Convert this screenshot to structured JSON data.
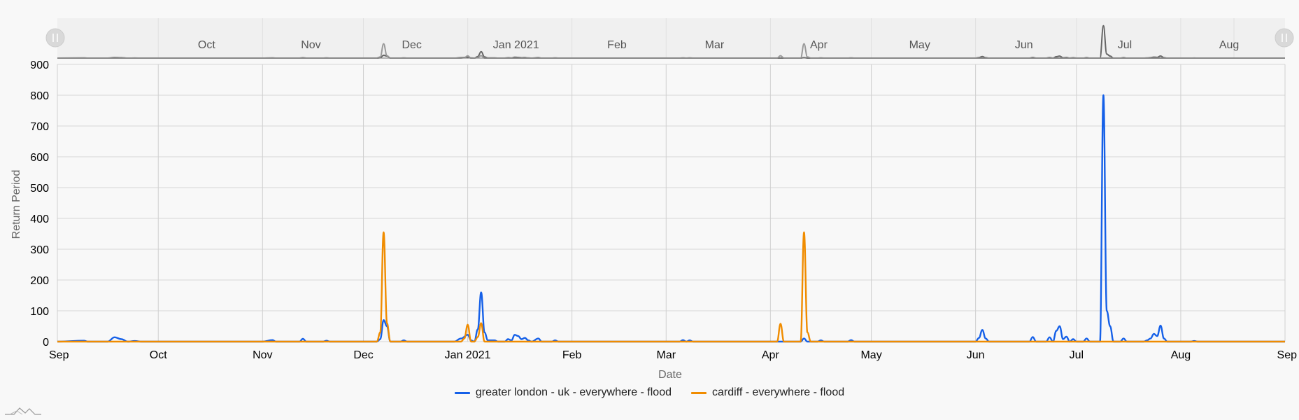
{
  "chart_data": {
    "type": "line",
    "xlabel": "Date",
    "ylabel": "Return Period",
    "ylim": [
      0,
      900
    ],
    "yticks": [
      0,
      100,
      200,
      300,
      400,
      500,
      600,
      700,
      800,
      900
    ],
    "xlim": [
      "2020-09-01",
      "2021-09-01"
    ],
    "xticks": [
      {
        "date": "2020-09-01",
        "label": "Sep"
      },
      {
        "date": "2020-10-01",
        "label": "Oct"
      },
      {
        "date": "2020-11-01",
        "label": "Nov"
      },
      {
        "date": "2020-12-01",
        "label": "Dec"
      },
      {
        "date": "2021-01-01",
        "label": "Jan 2021"
      },
      {
        "date": "2021-02-01",
        "label": "Feb"
      },
      {
        "date": "2021-03-01",
        "label": "Mar"
      },
      {
        "date": "2021-04-01",
        "label": "Apr"
      },
      {
        "date": "2021-05-01",
        "label": "May"
      },
      {
        "date": "2021-06-01",
        "label": "Jun"
      },
      {
        "date": "2021-07-01",
        "label": "Jul"
      },
      {
        "date": "2021-08-01",
        "label": "Aug"
      },
      {
        "date": "2021-09-01",
        "label": "Sep"
      }
    ],
    "navigator_labels": [
      "Oct",
      "Nov",
      "Dec",
      "Jan 2021",
      "Feb",
      "Mar",
      "Apr",
      "May",
      "Jun",
      "Jul",
      "Aug"
    ],
    "grid": true,
    "legend_position": "bottom-center",
    "series": [
      {
        "name": "greater london - uk - everywhere - flood",
        "color": "#1560e8",
        "points": [
          [
            "2020-09-01",
            0
          ],
          [
            "2020-09-09",
            3
          ],
          [
            "2020-09-10",
            0
          ],
          [
            "2020-09-16",
            0
          ],
          [
            "2020-09-18",
            14
          ],
          [
            "2020-09-20",
            8
          ],
          [
            "2020-09-22",
            0
          ],
          [
            "2020-09-24",
            2
          ],
          [
            "2020-09-26",
            0
          ],
          [
            "2020-10-10",
            0
          ],
          [
            "2020-11-01",
            0
          ],
          [
            "2020-11-04",
            5
          ],
          [
            "2020-11-05",
            0
          ],
          [
            "2020-11-12",
            0
          ],
          [
            "2020-11-13",
            9
          ],
          [
            "2020-11-14",
            0
          ],
          [
            "2020-11-19",
            0
          ],
          [
            "2020-11-20",
            3
          ],
          [
            "2020-11-21",
            0
          ],
          [
            "2020-12-05",
            0
          ],
          [
            "2020-12-06",
            8
          ],
          [
            "2020-12-07",
            70
          ],
          [
            "2020-12-08",
            50
          ],
          [
            "2020-12-09",
            0
          ],
          [
            "2020-12-12",
            0
          ],
          [
            "2020-12-13",
            4
          ],
          [
            "2020-12-14",
            0
          ],
          [
            "2020-12-28",
            0
          ],
          [
            "2020-12-30",
            10
          ],
          [
            "2021-01-01",
            22
          ],
          [
            "2021-01-02",
            4
          ],
          [
            "2021-01-03",
            0
          ],
          [
            "2021-01-04",
            40
          ],
          [
            "2021-01-05",
            160
          ],
          [
            "2021-01-06",
            30
          ],
          [
            "2021-01-07",
            4
          ],
          [
            "2021-01-09",
            4
          ],
          [
            "2021-01-10",
            0
          ],
          [
            "2021-01-12",
            0
          ],
          [
            "2021-01-13",
            8
          ],
          [
            "2021-01-14",
            4
          ],
          [
            "2021-01-15",
            22
          ],
          [
            "2021-01-16",
            18
          ],
          [
            "2021-01-17",
            8
          ],
          [
            "2021-01-18",
            12
          ],
          [
            "2021-01-19",
            4
          ],
          [
            "2021-01-20",
            0
          ],
          [
            "2021-01-22",
            10
          ],
          [
            "2021-01-23",
            0
          ],
          [
            "2021-01-26",
            0
          ],
          [
            "2021-01-27",
            4
          ],
          [
            "2021-01-28",
            0
          ],
          [
            "2021-03-05",
            0
          ],
          [
            "2021-03-06",
            5
          ],
          [
            "2021-03-07",
            0
          ],
          [
            "2021-03-08",
            4
          ],
          [
            "2021-03-09",
            0
          ],
          [
            "2021-04-10",
            0
          ],
          [
            "2021-04-11",
            10
          ],
          [
            "2021-04-12",
            0
          ],
          [
            "2021-04-15",
            0
          ],
          [
            "2021-04-16",
            4
          ],
          [
            "2021-04-17",
            0
          ],
          [
            "2021-04-24",
            0
          ],
          [
            "2021-04-25",
            5
          ],
          [
            "2021-04-26",
            0
          ],
          [
            "2021-06-01",
            0
          ],
          [
            "2021-06-02",
            12
          ],
          [
            "2021-06-03",
            38
          ],
          [
            "2021-06-04",
            10
          ],
          [
            "2021-06-05",
            0
          ],
          [
            "2021-06-17",
            0
          ],
          [
            "2021-06-18",
            15
          ],
          [
            "2021-06-19",
            0
          ],
          [
            "2021-06-22",
            0
          ],
          [
            "2021-06-23",
            14
          ],
          [
            "2021-06-24",
            0
          ],
          [
            "2021-06-25",
            35
          ],
          [
            "2021-06-26",
            50
          ],
          [
            "2021-06-27",
            8
          ],
          [
            "2021-06-28",
            16
          ],
          [
            "2021-06-29",
            0
          ],
          [
            "2021-06-30",
            8
          ],
          [
            "2021-07-01",
            0
          ],
          [
            "2021-07-03",
            0
          ],
          [
            "2021-07-04",
            10
          ],
          [
            "2021-07-05",
            0
          ],
          [
            "2021-07-08",
            0
          ],
          [
            "2021-07-09",
            800
          ],
          [
            "2021-07-10",
            100
          ],
          [
            "2021-07-11",
            50
          ],
          [
            "2021-07-12",
            0
          ],
          [
            "2021-07-14",
            0
          ],
          [
            "2021-07-15",
            10
          ],
          [
            "2021-07-16",
            0
          ],
          [
            "2021-07-21",
            0
          ],
          [
            "2021-07-22",
            4
          ],
          [
            "2021-07-23",
            10
          ],
          [
            "2021-07-24",
            25
          ],
          [
            "2021-07-25",
            18
          ],
          [
            "2021-07-26",
            52
          ],
          [
            "2021-07-27",
            10
          ],
          [
            "2021-07-28",
            0
          ],
          [
            "2021-08-04",
            0
          ],
          [
            "2021-08-05",
            2
          ],
          [
            "2021-08-06",
            0
          ],
          [
            "2021-09-01",
            0
          ]
        ]
      },
      {
        "name": "cardiff - everywhere - flood",
        "color": "#f08c00",
        "points": [
          [
            "2020-09-01",
            0
          ],
          [
            "2020-12-05",
            0
          ],
          [
            "2020-12-06",
            30
          ],
          [
            "2020-12-07",
            355
          ],
          [
            "2020-12-08",
            60
          ],
          [
            "2020-12-09",
            0
          ],
          [
            "2020-12-30",
            0
          ],
          [
            "2020-12-31",
            10
          ],
          [
            "2021-01-01",
            55
          ],
          [
            "2021-01-02",
            0
          ],
          [
            "2021-01-03",
            0
          ],
          [
            "2021-01-04",
            15
          ],
          [
            "2021-01-05",
            60
          ],
          [
            "2021-01-06",
            0
          ],
          [
            "2021-04-03",
            0
          ],
          [
            "2021-04-04",
            58
          ],
          [
            "2021-04-05",
            0
          ],
          [
            "2021-04-10",
            0
          ],
          [
            "2021-04-11",
            355
          ],
          [
            "2021-04-12",
            30
          ],
          [
            "2021-04-13",
            0
          ],
          [
            "2021-09-01",
            0
          ]
        ]
      }
    ]
  }
}
